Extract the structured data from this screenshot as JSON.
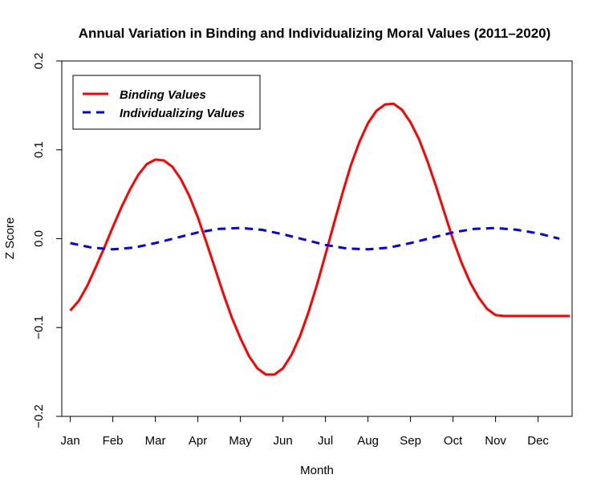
{
  "chart_data": {
    "type": "line",
    "title": "Annual Variation in Binding and Individualizing Moral Values (2011–2020)",
    "xlabel": "Month",
    "ylabel": "Z Score",
    "categories": [
      "Jan",
      "Feb",
      "Mar",
      "Apr",
      "May",
      "Jun",
      "Jul",
      "Aug",
      "Sep",
      "Oct",
      "Nov",
      "Dec"
    ],
    "xlim": [
      0.8,
      12.8
    ],
    "ylim": [
      -0.2,
      0.2
    ],
    "yticks": [
      -0.2,
      -0.1,
      0.0,
      0.1,
      0.2
    ],
    "ytick_labels": [
      "−0.2",
      "−0.1",
      "0.0",
      "0.1",
      "0.2"
    ],
    "grid": false,
    "legend_position": "top-left",
    "series": [
      {
        "name": "Binding Values",
        "color": "#ff0000",
        "linestyle": "solid",
        "x": [
          1.0,
          1.2,
          1.4,
          1.6,
          1.8,
          2.0,
          2.2,
          2.4,
          2.6,
          2.8,
          3.0,
          3.2,
          3.4,
          3.6,
          3.8,
          4.0,
          4.2,
          4.4,
          4.6,
          4.8,
          5.0,
          5.2,
          5.4,
          5.6,
          5.8,
          6.0,
          6.2,
          6.4,
          6.6,
          6.8,
          7.0,
          7.2,
          7.4,
          7.6,
          7.8,
          8.0,
          8.2,
          8.4,
          8.6,
          8.8,
          9.0,
          9.2,
          9.4,
          9.6,
          9.8,
          10.0,
          10.2,
          10.4,
          10.6,
          10.8,
          11.0,
          11.2,
          11.4,
          11.6,
          11.8,
          12.0,
          12.2,
          12.4,
          12.6,
          12.75
        ],
        "y": [
          -0.081,
          -0.07,
          -0.053,
          -0.032,
          -0.01,
          0.013,
          0.035,
          0.055,
          0.072,
          0.084,
          0.089,
          0.088,
          0.081,
          0.067,
          0.048,
          0.024,
          -0.004,
          -0.033,
          -0.062,
          -0.089,
          -0.112,
          -0.132,
          -0.146,
          -0.153,
          -0.153,
          -0.146,
          -0.131,
          -0.11,
          -0.083,
          -0.052,
          -0.018,
          0.017,
          0.051,
          0.083,
          0.109,
          0.13,
          0.144,
          0.151,
          0.152,
          0.145,
          0.131,
          0.112,
          0.087,
          0.059,
          0.029,
          -0.001,
          -0.027,
          -0.049,
          -0.066,
          -0.079,
          -0.086,
          -0.087,
          -0.087,
          -0.087,
          -0.087,
          -0.087,
          -0.087,
          -0.087,
          -0.087,
          -0.087
        ]
      },
      {
        "name": "Individualizing Values",
        "color": "#0000ee",
        "linestyle": "dashed",
        "x": [
          1.0,
          1.5,
          2.0,
          2.5,
          3.0,
          3.5,
          4.0,
          4.5,
          5.0,
          5.5,
          6.0,
          6.5,
          7.0,
          7.5,
          8.0,
          8.5,
          9.0,
          9.5,
          10.0,
          10.5,
          11.0,
          11.5,
          12.0,
          12.5
        ],
        "y": [
          -0.005,
          -0.01,
          -0.012,
          -0.01,
          -0.005,
          0.001,
          0.007,
          0.011,
          0.012,
          0.01,
          0.005,
          -0.001,
          -0.007,
          -0.011,
          -0.012,
          -0.01,
          -0.005,
          0.001,
          0.007,
          0.011,
          0.012,
          0.01,
          0.006,
          0.0
        ]
      }
    ]
  }
}
